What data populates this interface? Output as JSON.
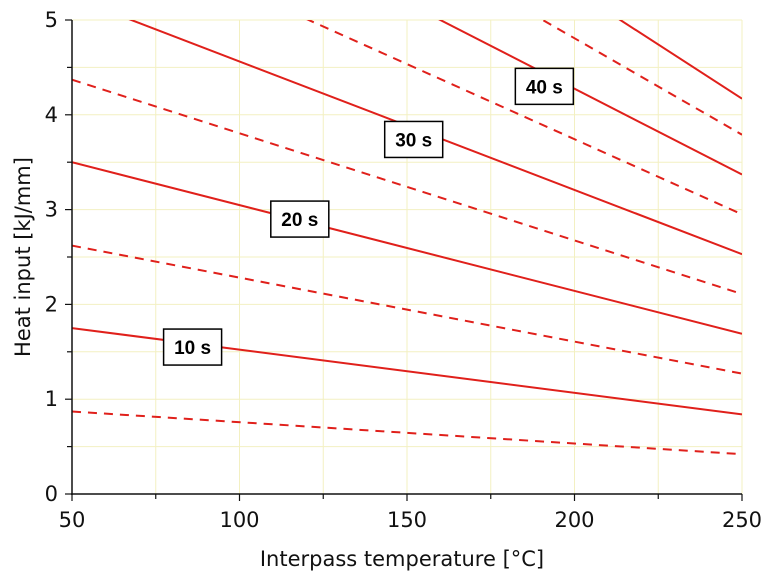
{
  "chart_data": {
    "type": "line",
    "xlabel": "Interpass temperature [°C]",
    "ylabel": "Heat input [kJ/mm]",
    "xlim": [
      50,
      250
    ],
    "ylim": [
      0,
      5
    ],
    "xticks": [
      50,
      100,
      150,
      200,
      250
    ],
    "yticks": [
      0,
      1,
      2,
      3,
      4,
      5
    ],
    "grid": true,
    "line_color": "#e0201b",
    "grid_color": "#f3f0c2",
    "series": [
      {
        "style": "dashed",
        "x": [
          50,
          250
        ],
        "y": [
          0.87,
          0.42
        ]
      },
      {
        "style": "solid",
        "x": [
          50,
          250
        ],
        "y": [
          1.75,
          0.84
        ]
      },
      {
        "style": "dashed",
        "x": [
          50,
          250
        ],
        "y": [
          2.62,
          1.27
        ]
      },
      {
        "style": "solid",
        "x": [
          50,
          250
        ],
        "y": [
          3.5,
          1.69
        ]
      },
      {
        "style": "dashed",
        "x": [
          50,
          250
        ],
        "y": [
          4.37,
          2.11
        ]
      },
      {
        "style": "solid",
        "x": [
          50,
          250
        ],
        "y": [
          5.24,
          2.53
        ]
      },
      {
        "style": "dashed",
        "x": [
          50,
          250
        ],
        "y": [
          6.12,
          2.95
        ]
      },
      {
        "style": "solid",
        "x": [
          50,
          250
        ],
        "y": [
          6.99,
          3.37
        ]
      },
      {
        "style": "dashed",
        "x": [
          50,
          250
        ],
        "y": [
          7.86,
          3.79
        ]
      },
      {
        "style": "solid",
        "x": [
          50,
          250
        ],
        "y": [
          8.74,
          4.17
        ]
      }
    ],
    "annotations": [
      {
        "text": "10 s",
        "x": 86,
        "y": 1.55
      },
      {
        "text": "20 s",
        "x": 118,
        "y": 2.9
      },
      {
        "text": "30 s",
        "x": 152,
        "y": 3.74
      },
      {
        "text": "40 s",
        "x": 191,
        "y": 4.3
      }
    ]
  }
}
